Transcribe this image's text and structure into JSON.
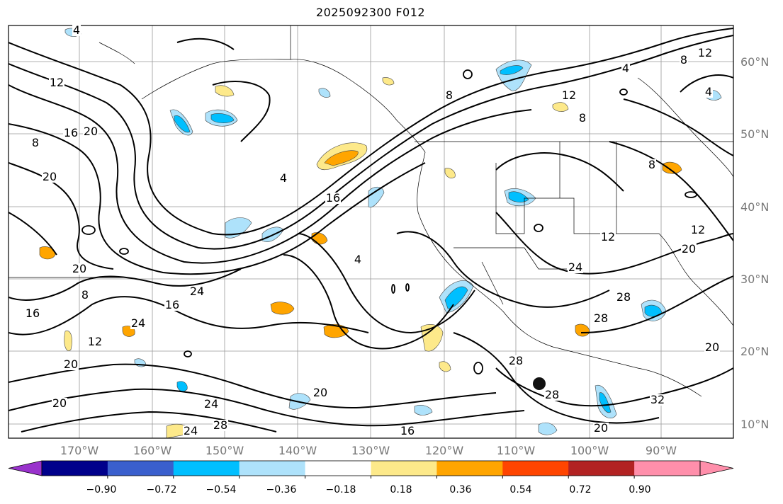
{
  "title": "2025092300 F012",
  "map": {
    "lat_labels": [
      "60°N",
      "50°N",
      "40°N",
      "30°N",
      "20°N",
      "10°N"
    ],
    "lon_labels": [
      "170°W",
      "160°W",
      "150°W",
      "140°W",
      "130°W",
      "120°W",
      "110°W",
      "100°W",
      "90°W"
    ],
    "gridlines": true,
    "contour_labels": [
      "4",
      "12",
      "8",
      "16",
      "20",
      "20",
      "8",
      "4",
      "16",
      "4",
      "12",
      "8",
      "4",
      "12",
      "8",
      "8",
      "12",
      "12",
      "20",
      "24",
      "20",
      "24",
      "16",
      "20",
      "16",
      "20",
      "12",
      "20",
      "24",
      "28",
      "24",
      "20",
      "16",
      "28",
      "28",
      "32",
      "28",
      "20",
      "28",
      "24",
      "4",
      "8"
    ],
    "shading_colors": {
      "negative_weak": "#aee2fb",
      "negative_mid": "#00bfff",
      "positive_weak": "#fde98a",
      "positive_mid": "#ffa500"
    }
  },
  "colorbar": {
    "ticks": [
      "−0.90",
      "−0.72",
      "−0.54",
      "−0.36",
      "−0.18",
      "0.18",
      "0.36",
      "0.54",
      "0.72",
      "0.90"
    ],
    "colors": [
      "#9932cc",
      "#00008b",
      "#3a5fcd",
      "#00bfff",
      "#aee2fb",
      "#ffffff",
      "#fde98a",
      "#ffa500",
      "#ff4500",
      "#b22222",
      "#ff8fab",
      "#ff8fab"
    ],
    "extend": "both"
  }
}
